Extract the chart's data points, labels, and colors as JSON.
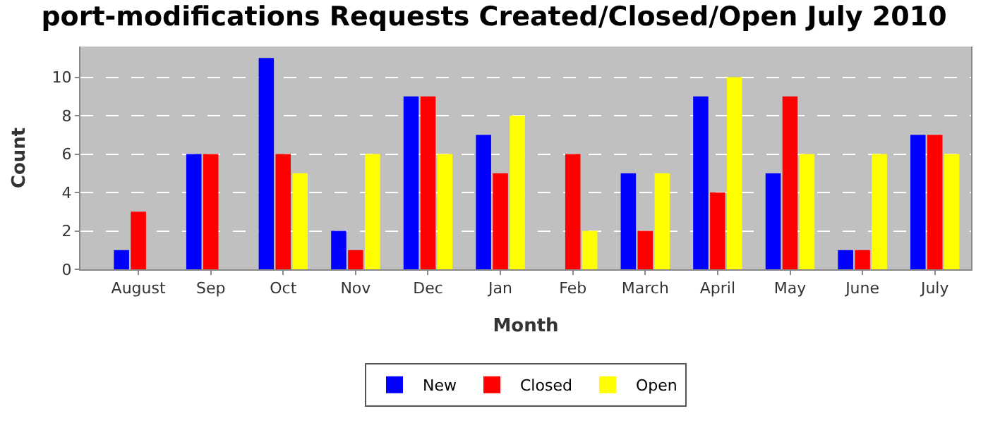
{
  "chart_data": {
    "type": "bar",
    "title": "port-modifications Requests Created/Closed/Open July 2010",
    "xlabel": "Month",
    "ylabel": "Count",
    "categories": [
      "August",
      "Sep",
      "Oct",
      "Nov",
      "Dec",
      "Jan",
      "Feb",
      "March",
      "April",
      "May",
      "June",
      "July"
    ],
    "series": [
      {
        "name": "New",
        "color": "#0000ff",
        "values": [
          1,
          6,
          11,
          2,
          9,
          7,
          0,
          5,
          9,
          5,
          1,
          7
        ]
      },
      {
        "name": "Closed",
        "color": "#ff0000",
        "values": [
          3,
          6,
          6,
          1,
          9,
          5,
          6,
          2,
          4,
          9,
          1,
          7
        ]
      },
      {
        "name": "Open",
        "color": "#ffff00",
        "values": [
          0,
          0,
          5,
          6,
          6,
          8,
          2,
          5,
          10,
          6,
          6,
          6
        ]
      }
    ],
    "ylim": [
      0,
      11.6
    ],
    "yticks": [
      0,
      2,
      4,
      6,
      8,
      10
    ],
    "grid": "y",
    "legend": "bottom"
  }
}
